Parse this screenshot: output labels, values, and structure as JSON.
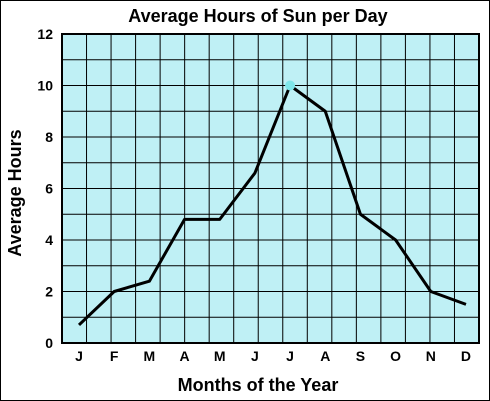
{
  "chart_data": {
    "type": "line",
    "title": "Average Hours of Sun per Day",
    "xlabel": "Months of the Year",
    "ylabel": "Average Hours",
    "categories": [
      "J",
      "F",
      "M",
      "A",
      "M",
      "J",
      "J",
      "A",
      "S",
      "O",
      "N",
      "D"
    ],
    "series": [
      {
        "values": [
          0.7,
          2.0,
          2.4,
          4.8,
          4.8,
          6.6,
          10.0,
          9.0,
          5.0,
          4.0,
          2.0,
          1.5
        ]
      }
    ],
    "yticks": [
      0,
      2,
      4,
      6,
      8,
      10,
      12
    ],
    "ylim": [
      0,
      12
    ],
    "grid": true,
    "highlight": {
      "index": 6,
      "value": 10.0
    },
    "colors": {
      "plot_background": "#bff0f5",
      "grid": "#000000",
      "line": "#000000",
      "highlight_marker": "#7fe7ea"
    }
  }
}
